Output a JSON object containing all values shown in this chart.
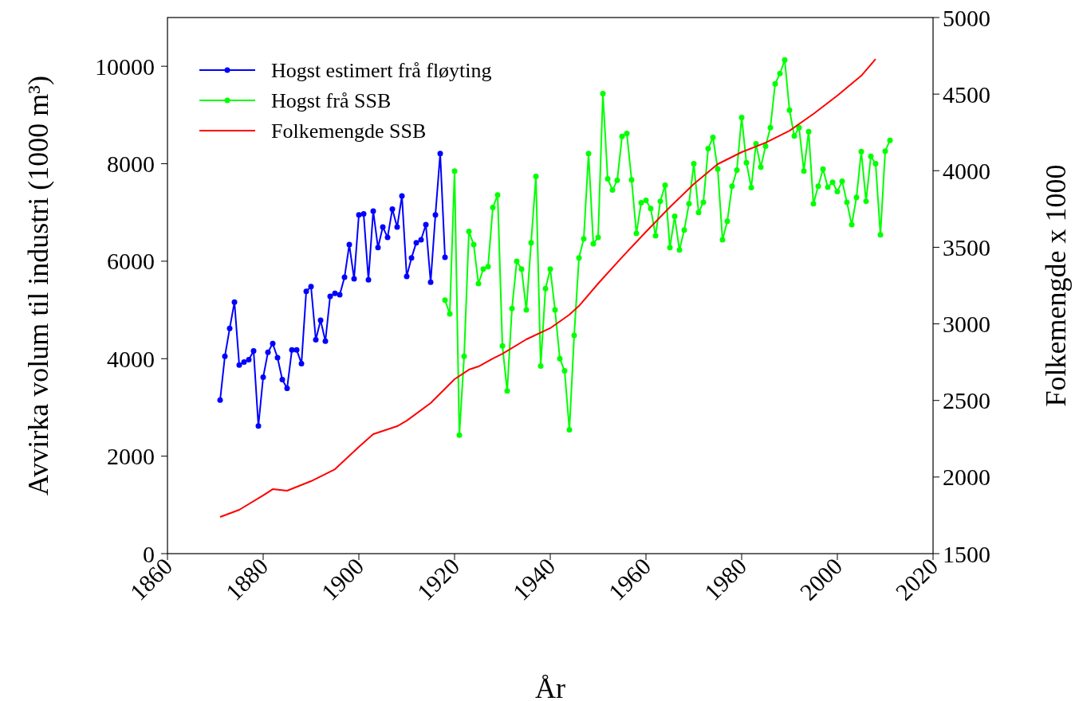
{
  "chart_data": {
    "type": "line",
    "xlabel": "År",
    "ylabel": "Avvirka volum til industri (1000 m³)",
    "y2label": "Folkemengde x 1000",
    "xlim": [
      1860,
      2020
    ],
    "xticks": [
      1860,
      1880,
      1900,
      1920,
      1940,
      1960,
      1980,
      2000,
      2020
    ],
    "ylim": [
      0,
      11000
    ],
    "yticks": [
      0,
      2000,
      4000,
      6000,
      8000,
      10000
    ],
    "y2lim": [
      1500,
      5000
    ],
    "y2ticks": [
      1500,
      2000,
      2500,
      3000,
      3500,
      4000,
      4500,
      5000
    ],
    "legend": "top left",
    "grid": false,
    "series": [
      {
        "name": "Hogst estimert frå fløyting",
        "color": "#0000ff",
        "marker": "circle",
        "x": [
          1871,
          1872,
          1873,
          1874,
          1875,
          1876,
          1877,
          1878,
          1879,
          1880,
          1881,
          1882,
          1883,
          1884,
          1885,
          1886,
          1887,
          1888,
          1889,
          1890,
          1891,
          1892,
          1893,
          1894,
          1895,
          1896,
          1897,
          1898,
          1899,
          1900,
          1901,
          1902,
          1903,
          1904,
          1905,
          1906,
          1907,
          1908,
          1909,
          1910,
          1911,
          1912,
          1913,
          1914,
          1915,
          1916,
          1917,
          1918
        ],
        "values": [
          3150,
          4050,
          4620,
          5160,
          3870,
          3930,
          3980,
          4160,
          2620,
          3620,
          4130,
          4310,
          4020,
          3570,
          3390,
          4180,
          4180,
          3900,
          5380,
          5480,
          4390,
          4790,
          4360,
          5280,
          5340,
          5310,
          5670,
          6340,
          5640,
          6950,
          6970,
          5620,
          7030,
          6280,
          6700,
          6490,
          7070,
          6700,
          7340,
          5690,
          6070,
          6380,
          6440,
          6750,
          5570,
          6950,
          8210,
          6080
        ]
      },
      {
        "name": "Hogst frå SSB",
        "color": "#00ff00",
        "marker": "circle",
        "x": [
          1918,
          1919,
          1920,
          1921,
          1922,
          1923,
          1924,
          1925,
          1926,
          1927,
          1928,
          1929,
          1930,
          1931,
          1932,
          1933,
          1934,
          1935,
          1936,
          1937,
          1938,
          1939,
          1940,
          1941,
          1942,
          1943,
          1944,
          1945,
          1946,
          1947,
          1948,
          1949,
          1950,
          1951,
          1952,
          1953,
          1954,
          1955,
          1956,
          1957,
          1958,
          1959,
          1960,
          1961,
          1962,
          1963,
          1964,
          1965,
          1966,
          1967,
          1968,
          1969,
          1970,
          1971,
          1972,
          1973,
          1974,
          1975,
          1976,
          1977,
          1978,
          1979,
          1980,
          1981,
          1982,
          1983,
          1984,
          1985,
          1986,
          1987,
          1988,
          1989,
          1990,
          1991,
          1992,
          1993,
          1994,
          1995,
          1996,
          1997,
          1998,
          1999,
          2000,
          2001,
          2002,
          2003,
          2004,
          2005,
          2006,
          2007,
          2008,
          2009,
          2010,
          2011
        ],
        "values": [
          5200,
          4920,
          7850,
          2430,
          4050,
          6610,
          6340,
          5540,
          5840,
          5890,
          7100,
          7360,
          4260,
          3340,
          5030,
          6000,
          5840,
          5000,
          6380,
          7740,
          3850,
          5440,
          5840,
          5000,
          4000,
          3750,
          2540,
          4480,
          6070,
          6460,
          8210,
          6360,
          6490,
          9440,
          7690,
          7460,
          7660,
          8560,
          8620,
          7670,
          6570,
          7200,
          7250,
          7080,
          6520,
          7230,
          7560,
          6280,
          6920,
          6230,
          6640,
          7180,
          8000,
          7000,
          7210,
          8310,
          8540,
          7890,
          6440,
          6820,
          7540,
          7870,
          8950,
          8020,
          7510,
          8410,
          7930,
          8360,
          8740,
          9640,
          9850,
          10130,
          9100,
          8570,
          8740,
          7850,
          8660,
          7180,
          7540,
          7890,
          7520,
          7620,
          7430,
          7640,
          7210,
          6750,
          7310,
          8250,
          7230,
          8150,
          8000,
          6540,
          8260,
          8480
        ]
      },
      {
        "name": "Folkemengde SSB",
        "color": "#ff0000",
        "marker": "none",
        "axis": "y2",
        "x": [
          1871,
          1875,
          1880,
          1882,
          1885,
          1890,
          1895,
          1900,
          1903,
          1908,
          1910,
          1915,
          1920,
          1923,
          1925,
          1928,
          1930,
          1935,
          1940,
          1944,
          1946,
          1950,
          1955,
          1960,
          1965,
          1970,
          1975,
          1980,
          1985,
          1990,
          1995,
          2000,
          2005,
          2008
        ],
        "values": [
          1739,
          1786,
          1880,
          1921,
          1911,
          1973,
          2051,
          2197,
          2280,
          2332,
          2368,
          2483,
          2639,
          2701,
          2722,
          2774,
          2805,
          2899,
          2972,
          3060,
          3117,
          3263,
          3435,
          3601,
          3762,
          3913,
          4043,
          4121,
          4183,
          4261,
          4371,
          4490,
          4620,
          4729
        ]
      }
    ]
  }
}
